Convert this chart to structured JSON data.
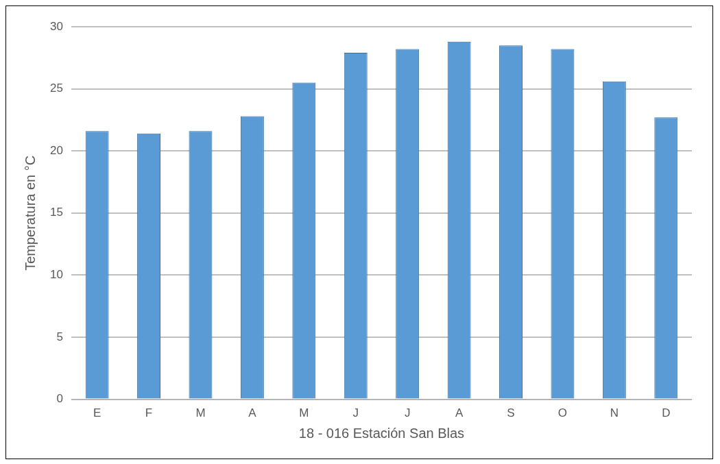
{
  "chart_data": {
    "type": "bar",
    "xlabel": "18 - 016 Estación San Blas",
    "ylabel": "Temperatura en °C",
    "categories": [
      "E",
      "F",
      "M",
      "A",
      "M",
      "J",
      "J",
      "A",
      "S",
      "O",
      "N",
      "D"
    ],
    "values": [
      21.6,
      21.4,
      21.6,
      22.8,
      25.5,
      27.9,
      28.2,
      28.8,
      28.5,
      28.2,
      25.6,
      22.7
    ],
    "color": "#5b9bd5",
    "ylim": [
      0,
      30
    ],
    "yticks": [
      0,
      5,
      10,
      15,
      20,
      25,
      30
    ],
    "grid": "y",
    "legend": false
  }
}
